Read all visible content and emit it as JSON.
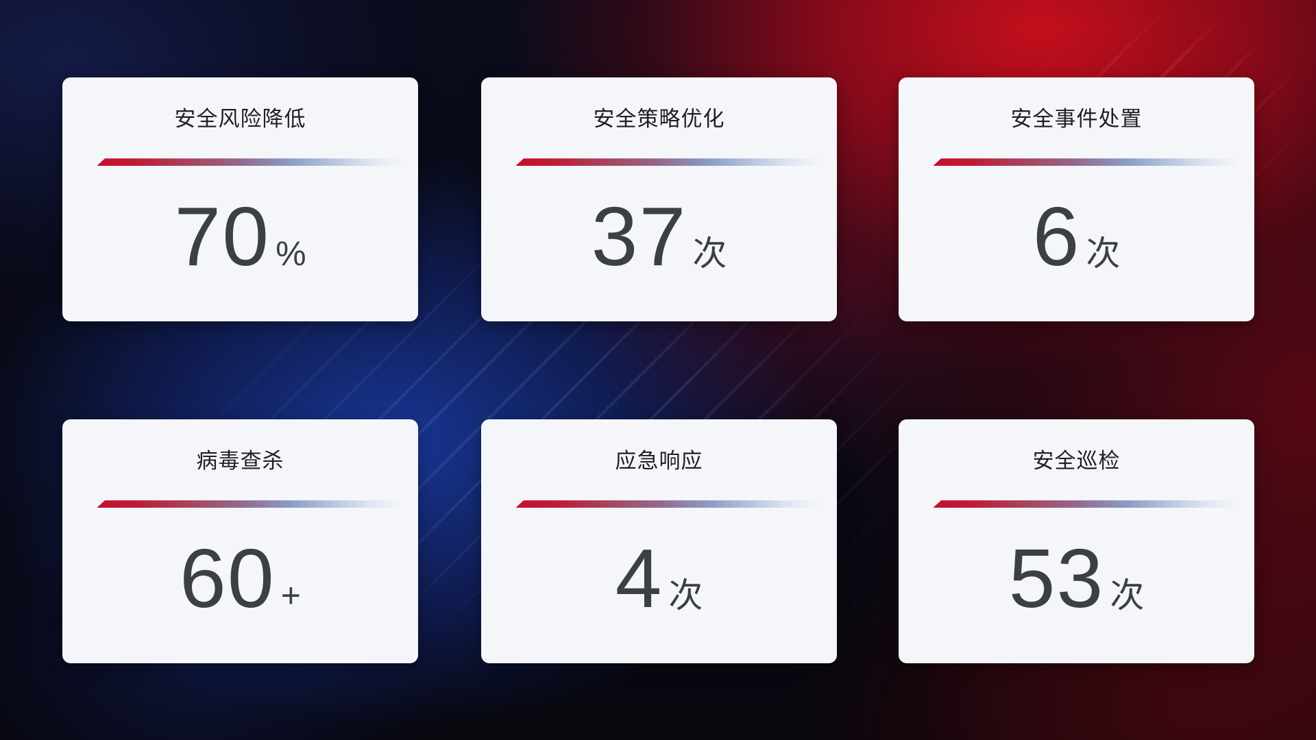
{
  "cards": [
    {
      "title": "安全风险降低",
      "value": "70",
      "unit": "%"
    },
    {
      "title": "安全策略优化",
      "value": "37",
      "unit": "次"
    },
    {
      "title": "安全事件处置",
      "value": "6",
      "unit": "次"
    },
    {
      "title": "病毒查杀",
      "value": "60",
      "unit": "+"
    },
    {
      "title": "应急响应",
      "value": "4",
      "unit": "次"
    },
    {
      "title": "安全巡检",
      "value": "53",
      "unit": "次"
    }
  ],
  "colors": {
    "card_background": "#f5f6fa",
    "title_text": "#1e2025",
    "value_text": "#3c3f45",
    "divider_red": "#c6102f",
    "divider_blue": "#b7c6df",
    "background_red_accent": "#a00d1e",
    "background_blue_accent": "#1c3eaa",
    "background_base": "#07080f"
  }
}
